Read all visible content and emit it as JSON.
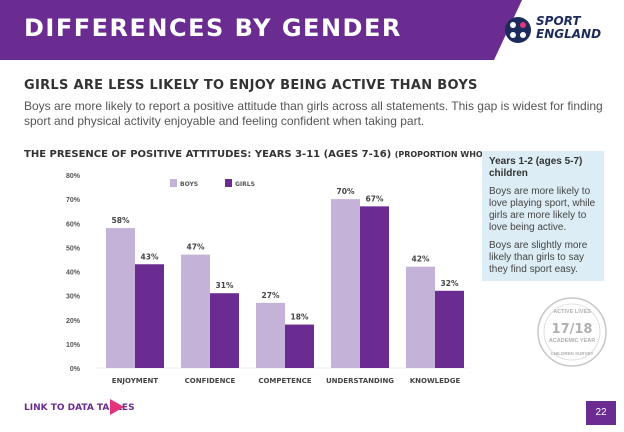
{
  "header": {
    "title": "DIFFERENCES BY GENDER"
  },
  "logo": {
    "line1": "SPORT",
    "line2": "ENGLAND"
  },
  "section": {
    "subheading": "GIRLS ARE LESS LIKELY TO ENJOY BEING ACTIVE THAN BOYS",
    "intro": "Boys are more likely to report a positive attitude than girls across all statements. This gap is widest for finding sport and physical activity enjoyable and feeling confident when taking part."
  },
  "chart_title": {
    "main": "THE PRESENCE OF POSITIVE ATTITUDES: YEARS 3-11 (AGES 7-16)",
    "sub": "(PROPORTION WHO STRONGLY AGREE)"
  },
  "sidebox": {
    "title": "Years 1-2 (ages 5-7) children",
    "p1": "Boys are more likely to love playing sport, while girls are more likely to love being active.",
    "p2": "Boys are slightly more likely than girls to say they find sport easy."
  },
  "badge": {
    "top": "ACTIVE LIVES",
    "middle": "17/18",
    "lower": "ACADEMIC YEAR",
    "bottom": "CHILDREN SURVEY"
  },
  "footer": {
    "link": "LINK TO DATA TABLES",
    "page": "22"
  },
  "colors": {
    "purple": "#6a2c91",
    "boys": "#c4b2d9",
    "girls": "#6a2c91",
    "pink": "#e5337c"
  },
  "chart_data": {
    "type": "bar",
    "title": "THE PRESENCE OF POSITIVE ATTITUDES: YEARS 3-11 (AGES 7-16) (PROPORTION WHO STRONGLY AGREE)",
    "categories": [
      "ENJOYMENT",
      "CONFIDENCE",
      "COMPETENCE",
      "UNDERSTANDING",
      "KNOWLEDGE"
    ],
    "series": [
      {
        "name": "BOYS",
        "values": [
          58,
          47,
          27,
          70,
          42
        ]
      },
      {
        "name": "GIRLS",
        "values": [
          43,
          31,
          18,
          67,
          32
        ]
      }
    ],
    "ylim": [
      0,
      80
    ],
    "yticks": [
      "0%",
      "10%",
      "20%",
      "30%",
      "40%",
      "50%",
      "60%",
      "70%",
      "80%"
    ],
    "value_suffix": "%",
    "legend": "top"
  }
}
